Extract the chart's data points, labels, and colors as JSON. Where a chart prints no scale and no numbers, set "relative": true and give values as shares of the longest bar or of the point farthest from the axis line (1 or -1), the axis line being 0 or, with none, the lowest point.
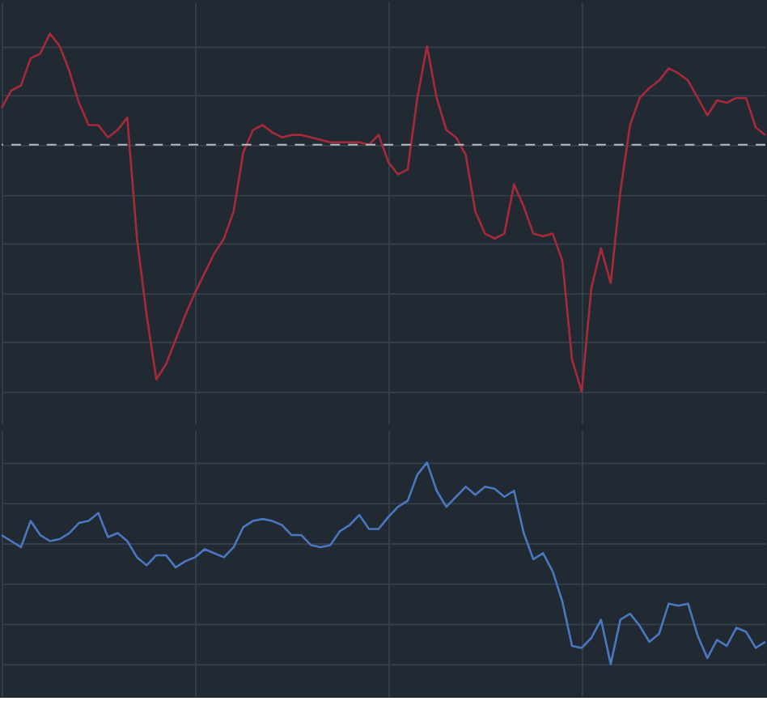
{
  "chart_data": [
    {
      "type": "line",
      "relative": true,
      "grid": true,
      "categories": [
        null,
        null,
        null,
        null,
        null,
        null,
        null,
        null,
        null,
        null,
        null,
        null,
        null,
        null,
        null,
        null,
        null,
        null,
        null,
        null,
        null,
        null,
        null,
        null,
        null,
        null,
        null,
        null,
        null,
        null,
        null,
        null,
        null,
        null,
        null,
        null,
        null,
        null,
        null,
        null,
        null,
        null,
        null,
        null,
        null,
        null,
        null,
        null,
        null,
        null,
        null,
        null,
        null,
        null,
        null,
        null,
        null,
        null,
        null,
        null,
        null,
        null,
        null,
        null,
        null,
        null,
        null,
        null,
        null,
        null,
        null,
        null,
        null,
        null,
        null,
        null,
        null,
        null,
        null,
        null
      ],
      "series": [
        {
          "color": "#a82a3a",
          "values": [
            0.15,
            0.22,
            0.24,
            0.35,
            0.37,
            0.45,
            0.4,
            0.3,
            0.17,
            0.08,
            0.08,
            0.03,
            0.06,
            0.11,
            -0.38,
            -0.69,
            -0.95,
            -0.89,
            -0.79,
            -0.69,
            -0.6,
            -0.52,
            -0.44,
            -0.38,
            -0.27,
            -0.03,
            0.06,
            0.08,
            0.05,
            0.03,
            0.04,
            0.04,
            0.03,
            0.02,
            0.01,
            0.01,
            0.01,
            0.01,
            0,
            0.04,
            -0.07,
            -0.12,
            -0.1,
            0.19,
            0.4,
            0.19,
            0.06,
            0.03,
            -0.04,
            -0.27,
            -0.36,
            -0.38,
            -0.36,
            -0.16,
            -0.25,
            -0.36,
            -0.37,
            -0.36,
            -0.47,
            -0.87,
            -1,
            -0.58,
            -0.42,
            -0.56,
            -0.19,
            0.08,
            0.19,
            0.23,
            0.26,
            0.31,
            0.29,
            0.26,
            0.19,
            0.12,
            0.18,
            0.17,
            0.19,
            0.19,
            0.07,
            0.04
          ]
        }
      ],
      "ref_lines": [
        {
          "axis": "y",
          "value": 0,
          "color": "#b4bcc4",
          "line_style": "dashed"
        }
      ]
    },
    {
      "type": "line",
      "relative": true,
      "grid": true,
      "categories": [
        null,
        null,
        null,
        null,
        null,
        null,
        null,
        null,
        null,
        null,
        null,
        null,
        null,
        null,
        null,
        null,
        null,
        null,
        null,
        null,
        null,
        null,
        null,
        null,
        null,
        null,
        null,
        null,
        null,
        null,
        null,
        null,
        null,
        null,
        null,
        null,
        null,
        null,
        null,
        null,
        null,
        null,
        null,
        null,
        null,
        null,
        null,
        null,
        null,
        null,
        null,
        null,
        null,
        null,
        null,
        null,
        null,
        null,
        null,
        null,
        null,
        null,
        null,
        null,
        null,
        null,
        null,
        null,
        null,
        null,
        null,
        null,
        null,
        null,
        null,
        null,
        null,
        null,
        null,
        null
      ],
      "series": [
        {
          "color": "#4a78c0",
          "values": [
            0.64,
            0.61,
            0.58,
            0.71,
            0.64,
            0.61,
            0.62,
            0.65,
            0.7,
            0.71,
            0.75,
            0.63,
            0.65,
            0.61,
            0.53,
            0.49,
            0.54,
            0.54,
            0.48,
            0.51,
            0.53,
            0.57,
            0.55,
            0.53,
            0.58,
            0.68,
            0.71,
            0.72,
            0.71,
            0.69,
            0.64,
            0.64,
            0.59,
            0.58,
            0.59,
            0.66,
            0.69,
            0.74,
            0.67,
            0.67,
            0.73,
            0.78,
            0.81,
            0.94,
            1,
            0.86,
            0.78,
            0.83,
            0.88,
            0.84,
            0.88,
            0.87,
            0.83,
            0.86,
            0.65,
            0.52,
            0.55,
            0.46,
            0.31,
            0.09,
            0.08,
            0.13,
            0.22,
            0,
            0.22,
            0.25,
            0.19,
            0.11,
            0.15,
            0.3,
            0.29,
            0.3,
            0.14,
            0.03,
            0.12,
            0.09,
            0.18,
            0.16,
            0.08,
            0.11
          ]
        }
      ]
    }
  ]
}
